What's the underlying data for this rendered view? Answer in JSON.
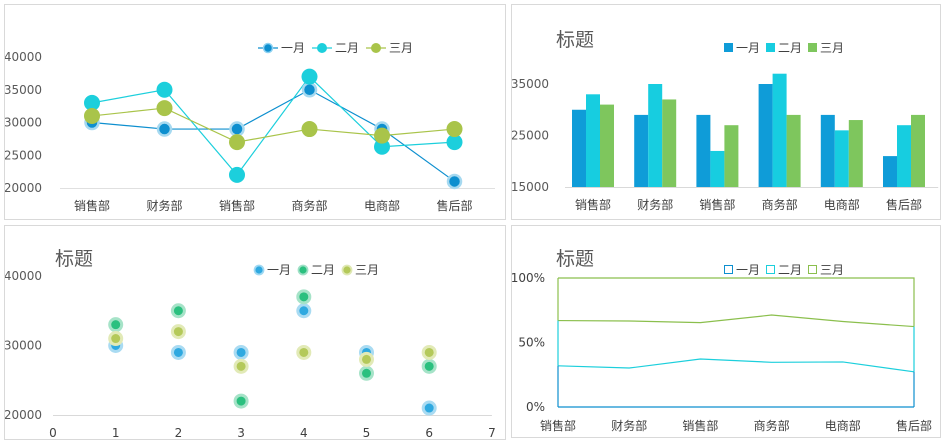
{
  "colors": {
    "jan": "#0d8fcf",
    "feb": "#1ccfdc",
    "mar": "#a9c44a",
    "bar_jan": "#0f9cd8",
    "bar_feb": "#17cde0",
    "bar_mar": "#7ec65d",
    "sc_jan": "#2fa9e0",
    "sc_feb": "#2bc07f",
    "sc_mar": "#b4c95a",
    "pct_mar": "#8bbf4d"
  },
  "chart_data": [
    {
      "id": "chart1",
      "type": "line",
      "title": "",
      "categories": [
        "销售部",
        "财务部",
        "销售部",
        "商务部",
        "电商部",
        "售后部"
      ],
      "series": [
        {
          "name": "一月",
          "values": [
            30000,
            29000,
            29000,
            35000,
            29000,
            21000
          ]
        },
        {
          "name": "二月",
          "values": [
            33000,
            35000,
            22000,
            37000,
            26300,
            27000
          ]
        },
        {
          "name": "三月",
          "values": [
            31000,
            32200,
            27000,
            29000,
            28000,
            29000
          ]
        }
      ],
      "ylim": [
        20000,
        40000
      ],
      "yticks": [
        "20000",
        "25000",
        "30000",
        "35000",
        "40000"
      ],
      "legend": "top"
    },
    {
      "id": "chart2",
      "type": "bar",
      "title": "标题",
      "categories": [
        "销售部",
        "财务部",
        "销售部",
        "商务部",
        "电商部",
        "售后部"
      ],
      "series": [
        {
          "name": "一月",
          "values": [
            30000,
            29000,
            29000,
            35000,
            29000,
            21000
          ]
        },
        {
          "name": "二月",
          "values": [
            33000,
            35000,
            22000,
            37000,
            26000,
            27000
          ]
        },
        {
          "name": "三月",
          "values": [
            31000,
            32000,
            27000,
            29000,
            28000,
            29000
          ]
        }
      ],
      "ylim": [
        15000,
        35000
      ],
      "yticks": [
        "15000",
        "25000",
        "35000"
      ],
      "legend": "top"
    },
    {
      "id": "chart3",
      "type": "scatter",
      "title": "标题",
      "series": [
        {
          "name": "一月",
          "x": [
            1,
            2,
            3,
            4,
            5,
            6
          ],
          "y": [
            30000,
            29000,
            29000,
            35000,
            29000,
            21000
          ]
        },
        {
          "name": "二月",
          "x": [
            1,
            2,
            3,
            4,
            5,
            6
          ],
          "y": [
            33000,
            35000,
            22000,
            37000,
            26000,
            27000
          ]
        },
        {
          "name": "三月",
          "x": [
            1,
            2,
            3,
            4,
            5,
            6
          ],
          "y": [
            31000,
            32000,
            27000,
            29000,
            28000,
            29000
          ]
        }
      ],
      "xlim": [
        0,
        7
      ],
      "xticks": [
        "0",
        "1",
        "2",
        "3",
        "4",
        "5",
        "6",
        "7"
      ],
      "ylim": [
        20000,
        40000
      ],
      "yticks": [
        "20000",
        "30000",
        "40000"
      ],
      "legend": "top"
    },
    {
      "id": "chart4",
      "type": "area",
      "title": "标题",
      "stacked": "percent",
      "categories": [
        "销售部",
        "财务部",
        "销售部",
        "商务部",
        "电商部",
        "售后部"
      ],
      "series": [
        {
          "name": "一月",
          "values": [
            30000,
            29000,
            29000,
            35000,
            29000,
            21000
          ]
        },
        {
          "name": "二月",
          "values": [
            33000,
            35000,
            22000,
            37000,
            26000,
            27000
          ]
        },
        {
          "name": "三月",
          "values": [
            31000,
            32000,
            27000,
            29000,
            28000,
            29000
          ]
        }
      ],
      "ylim": [
        0,
        100
      ],
      "yticks": [
        "0%",
        "50%",
        "100%"
      ],
      "legend": "top"
    }
  ]
}
